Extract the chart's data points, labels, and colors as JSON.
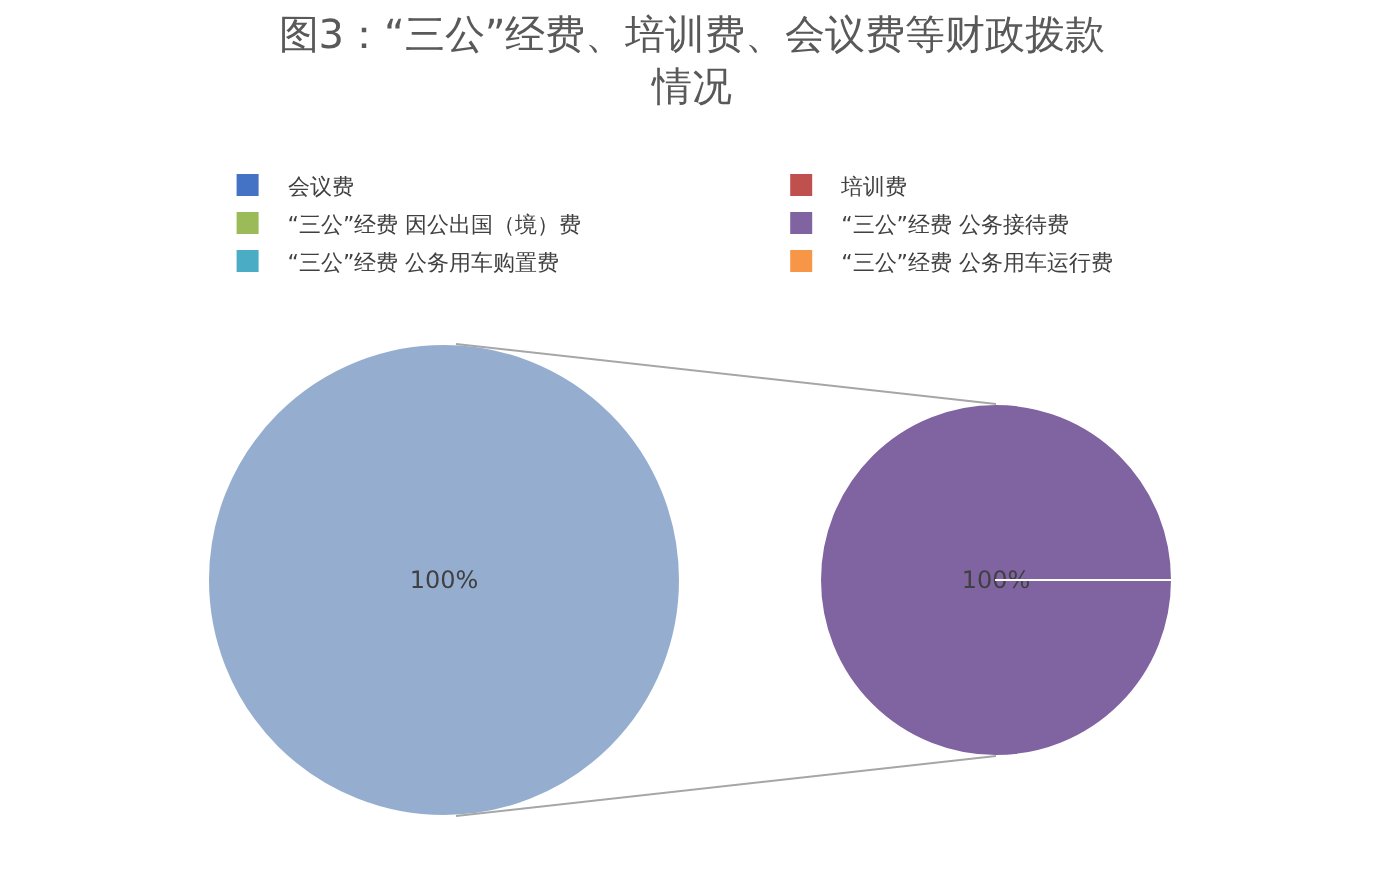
{
  "chart_data": [
    {
      "type": "pie",
      "title": "图3：“三公”经费、培训费、会议费等财政拨款情况",
      "categories": [
        null
      ],
      "values": [
        100
      ],
      "colors": [
        "#95aed0"
      ],
      "value_labels": [
        "100%"
      ],
      "legend": false
    },
    {
      "type": "pie",
      "categories": [
        "会议费",
        "培训费",
        "“三公”经费 因公出国（境）费",
        "“三公”经费 公务接待费",
        "“三公”经费 公务用车购置费",
        "“三公”经费 公务用车运行费"
      ],
      "values": [
        0,
        0,
        0,
        100,
        0,
        0
      ],
      "colors": [
        "#4472c4",
        "#c0504d",
        "#9bbb59",
        "#8064a2",
        "#4bacc6",
        "#f79646"
      ],
      "value_labels": [
        null,
        null,
        null,
        "100%",
        null,
        null
      ],
      "legend": "top"
    }
  ]
}
